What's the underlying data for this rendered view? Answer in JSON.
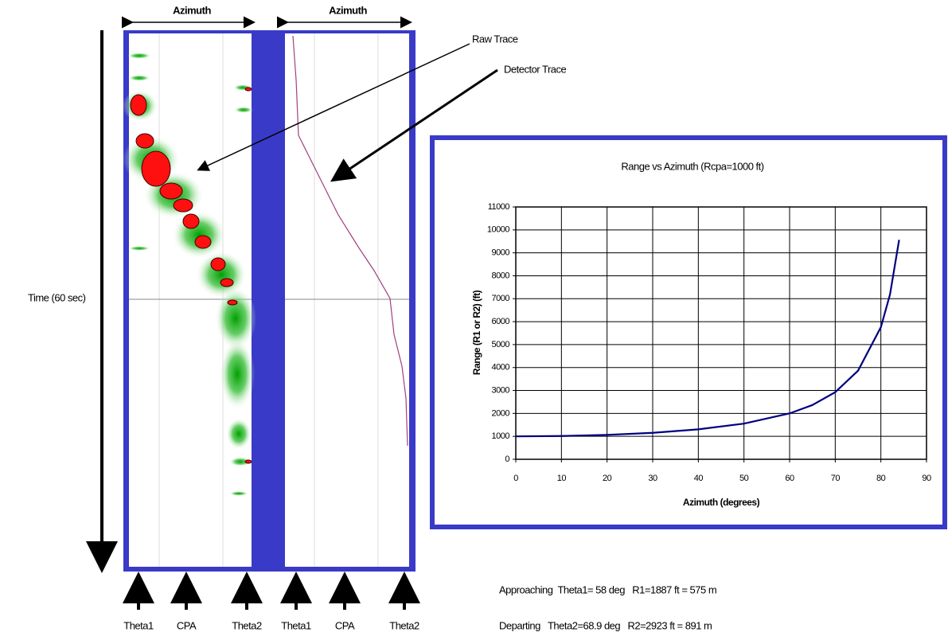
{
  "chart_data": {
    "type": "line",
    "title": "Range vs Azimuth (Rcpa=1000 ft)",
    "xlabel": "Azimuth (degrees)",
    "ylabel": "Range (R1 or R2) (ft)",
    "x": [
      0,
      10,
      20,
      30,
      40,
      50,
      60,
      65,
      70,
      75,
      80,
      82,
      84
    ],
    "values": [
      1000,
      1015,
      1064,
      1155,
      1305,
      1556,
      2000,
      2366,
      2924,
      3864,
      5759,
      7185,
      9567
    ],
    "color": "#000080",
    "xlim": [
      0,
      90
    ],
    "xticks": [
      0,
      10,
      20,
      30,
      40,
      50,
      60,
      70,
      80,
      90
    ],
    "ylim": [
      0,
      11000
    ],
    "yticks": [
      0,
      1000,
      2000,
      3000,
      4000,
      5000,
      6000,
      7000,
      8000,
      9000,
      10000,
      11000
    ],
    "grid": true
  },
  "display": {
    "azimuth_labels": [
      "Azimuth",
      "Azimuth"
    ],
    "time_label": "Time (60 sec)",
    "raw_trace": "Raw Trace",
    "detector_trace": "Detector Trace",
    "bottom_labels": [
      "Theta1",
      "CPA",
      "Theta2",
      "Theta1",
      "CPA",
      "Theta2"
    ],
    "notes": [
      "Approaching  Theta1= 58 deg   R1=1887 ft = 575 m",
      "Departing   Theta2=68.9 deg   R2=2923 ft = 891 m"
    ]
  }
}
